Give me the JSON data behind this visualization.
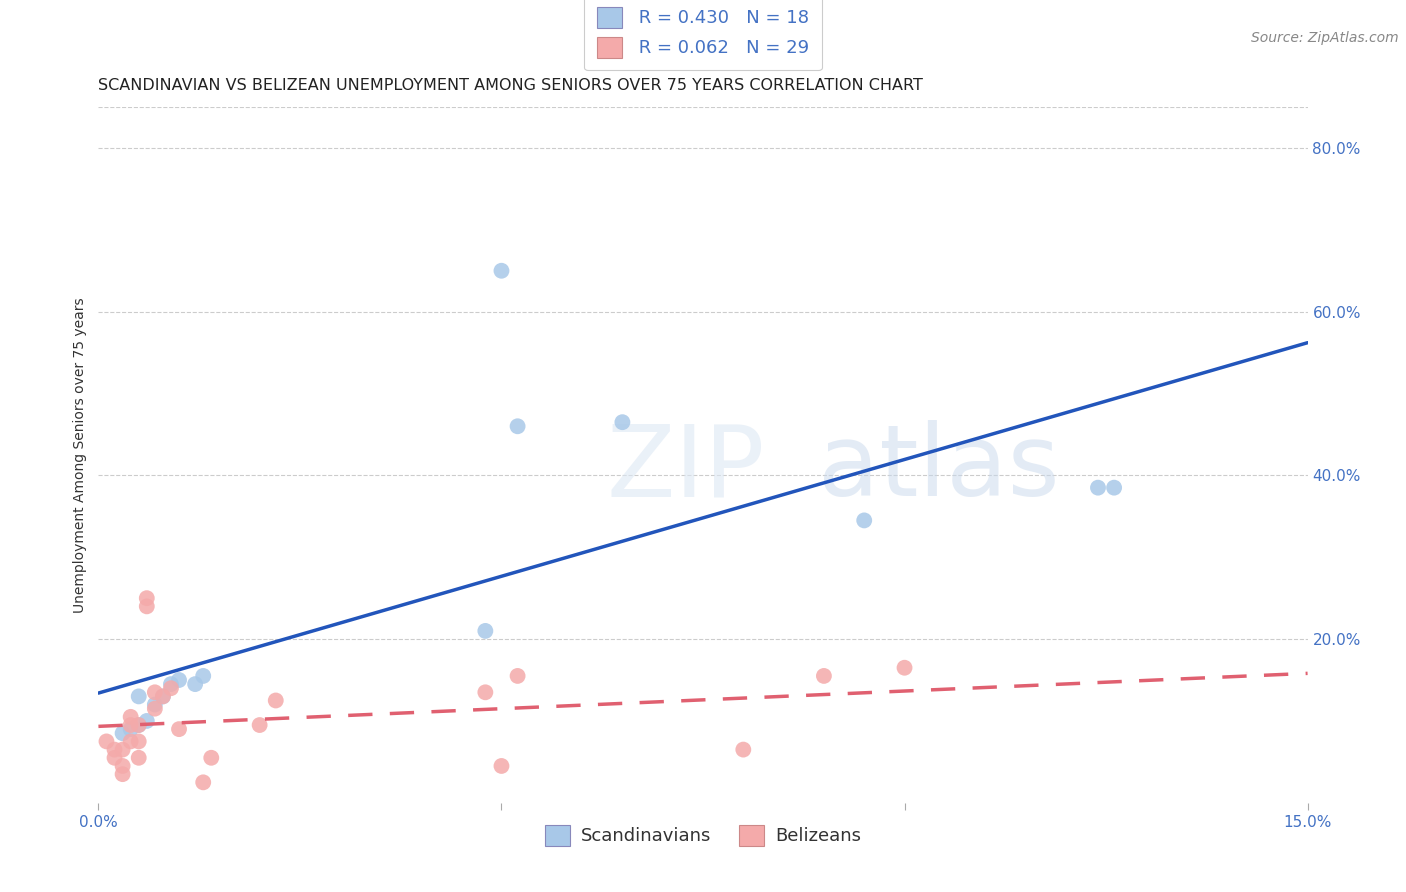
{
  "title": "SCANDINAVIAN VS BELIZEAN UNEMPLOYMENT AMONG SENIORS OVER 75 YEARS CORRELATION CHART",
  "source": "Source: ZipAtlas.com",
  "ylabel": "Unemployment Among Seniors over 75 years",
  "xlim": [
    0.0,
    0.15
  ],
  "ylim": [
    0.0,
    0.85
  ],
  "x_ticks": [
    0.0,
    0.05,
    0.1,
    0.15
  ],
  "x_tick_labels": [
    "0.0%",
    "",
    "",
    "15.0%"
  ],
  "y_ticks_right": [
    0.0,
    0.2,
    0.4,
    0.6,
    0.8
  ],
  "y_tick_labels_right": [
    "",
    "20.0%",
    "40.0%",
    "60.0%",
    "80.0%"
  ],
  "scandinavian_R": 0.43,
  "scandinavian_N": 18,
  "belizean_R": 0.062,
  "belizean_N": 29,
  "scandinavian_color": "#a8c8e8",
  "belizean_color": "#f4aaaa",
  "scandinavian_line_color": "#2255bb",
  "belizean_line_color": "#e06070",
  "legend_blue_color": "#4472c4",
  "background_color": "#ffffff",
  "grid_color": "#cccccc",
  "watermark_zip": "ZIP",
  "watermark_atlas": "atlas",
  "scandinavian_x": [
    0.003,
    0.004,
    0.005,
    0.005,
    0.006,
    0.007,
    0.008,
    0.009,
    0.01,
    0.012,
    0.013,
    0.048,
    0.05,
    0.052,
    0.065,
    0.095,
    0.124,
    0.126
  ],
  "scandinavian_y": [
    0.085,
    0.09,
    0.095,
    0.13,
    0.1,
    0.12,
    0.13,
    0.145,
    0.15,
    0.145,
    0.155,
    0.21,
    0.65,
    0.46,
    0.465,
    0.345,
    0.385,
    0.385
  ],
  "belizean_x": [
    0.001,
    0.002,
    0.002,
    0.003,
    0.003,
    0.003,
    0.004,
    0.004,
    0.004,
    0.005,
    0.005,
    0.005,
    0.006,
    0.006,
    0.007,
    0.007,
    0.008,
    0.009,
    0.01,
    0.013,
    0.014,
    0.02,
    0.022,
    0.048,
    0.05,
    0.052,
    0.08,
    0.09,
    0.1
  ],
  "belizean_y": [
    0.075,
    0.055,
    0.065,
    0.035,
    0.045,
    0.065,
    0.075,
    0.095,
    0.105,
    0.055,
    0.075,
    0.095,
    0.24,
    0.25,
    0.115,
    0.135,
    0.13,
    0.14,
    0.09,
    0.025,
    0.055,
    0.095,
    0.125,
    0.135,
    0.045,
    0.155,
    0.065,
    0.155,
    0.165
  ],
  "title_fontsize": 11.5,
  "axis_label_fontsize": 10,
  "tick_fontsize": 11,
  "legend_fontsize": 13,
  "source_fontsize": 10,
  "marker_size": 130,
  "line_width": 2.5
}
